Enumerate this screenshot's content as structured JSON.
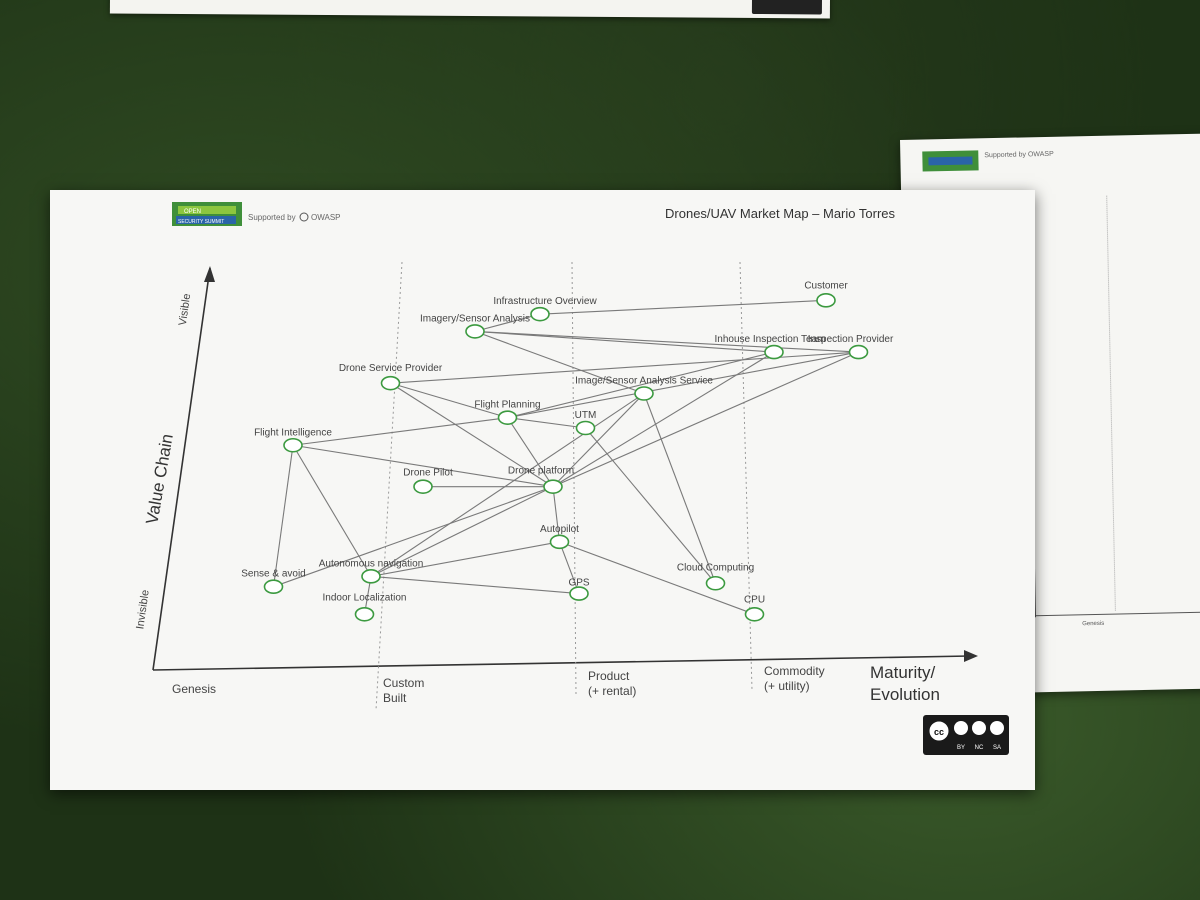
{
  "header": {
    "title": "Drones/UAV Market Map – Mario Torres",
    "supported_by": "Supported by",
    "sponsor": "OWASP",
    "badge_line1": "OPEN",
    "badge_line2": "SECURITY SUMMIT"
  },
  "axes": {
    "y_label": "Value Chain",
    "y_top": "Visible",
    "y_bottom": "Invisible",
    "x_label_line1": "Maturity/",
    "x_label_line2": "Evolution"
  },
  "stages": [
    {
      "line1": "Genesis",
      "line2": ""
    },
    {
      "line1": "Custom",
      "line2": "Built"
    },
    {
      "line1": "Product",
      "line2": "(+ rental)"
    },
    {
      "line1": "Commodity",
      "line2": "(+ utility)"
    }
  ],
  "nodes": [
    {
      "id": "customer",
      "label": "Customer",
      "evolution": 0.94,
      "visibility": 0.97
    },
    {
      "id": "infra",
      "label": "Infrastructure Overview",
      "evolution": 0.5,
      "visibility": 0.93
    },
    {
      "id": "imagery",
      "label": "Imagery/Sensor Analysis",
      "evolution": 0.4,
      "visibility": 0.88
    },
    {
      "id": "inhouse",
      "label": "Inhouse Inspection Team",
      "evolution": 0.86,
      "visibility": 0.82
    },
    {
      "id": "inspection",
      "label": "Inspection Provider",
      "evolution": 0.99,
      "visibility": 0.82
    },
    {
      "id": "dsp",
      "label": "Drone Service Provider",
      "evolution": 0.27,
      "visibility": 0.73
    },
    {
      "id": "isas",
      "label": "Image/Sensor Analysis Service",
      "evolution": 0.66,
      "visibility": 0.7
    },
    {
      "id": "fp",
      "label": "Flight Planning",
      "evolution": 0.45,
      "visibility": 0.63
    },
    {
      "id": "utm",
      "label": "UTM",
      "evolution": 0.57,
      "visibility": 0.6
    },
    {
      "id": "fi",
      "label": "Flight Intelligence",
      "evolution": 0.12,
      "visibility": 0.55
    },
    {
      "id": "pilot",
      "label": "Drone Pilot",
      "evolution": 0.32,
      "visibility": 0.43
    },
    {
      "id": "platform",
      "label": "Drone platform",
      "evolution": 0.52,
      "visibility": 0.43
    },
    {
      "id": "autopilot",
      "label": "Autopilot",
      "evolution": 0.53,
      "visibility": 0.27
    },
    {
      "id": "sa",
      "label": "Sense & avoid",
      "evolution": 0.09,
      "visibility": 0.14
    },
    {
      "id": "an",
      "label": "Autonomous navigation",
      "evolution": 0.24,
      "visibility": 0.17
    },
    {
      "id": "cloud",
      "label": "Cloud Computing",
      "evolution": 0.77,
      "visibility": 0.15
    },
    {
      "id": "gps",
      "label": "GPS",
      "evolution": 0.56,
      "visibility": 0.12
    },
    {
      "id": "cpu",
      "label": "CPU",
      "evolution": 0.83,
      "visibility": 0.06
    },
    {
      "id": "il",
      "label": "Indoor Localization",
      "evolution": 0.23,
      "visibility": 0.06
    }
  ],
  "links": [
    [
      "infra",
      "customer"
    ],
    [
      "imagery",
      "infra"
    ],
    [
      "imagery",
      "inhouse"
    ],
    [
      "imagery",
      "inspection"
    ],
    [
      "imagery",
      "isas"
    ],
    [
      "dsp",
      "inspection"
    ],
    [
      "dsp",
      "fp"
    ],
    [
      "dsp",
      "platform"
    ],
    [
      "fp",
      "inhouse"
    ],
    [
      "fp",
      "inspection"
    ],
    [
      "fp",
      "utm"
    ],
    [
      "fp",
      "platform"
    ],
    [
      "fp",
      "fi"
    ],
    [
      "isas",
      "cloud"
    ],
    [
      "isas",
      "platform"
    ],
    [
      "isas",
      "an"
    ],
    [
      "inhouse",
      "platform"
    ],
    [
      "inspection",
      "platform"
    ],
    [
      "utm",
      "cloud"
    ],
    [
      "fi",
      "platform"
    ],
    [
      "fi",
      "sa"
    ],
    [
      "fi",
      "an"
    ],
    [
      "pilot",
      "platform"
    ],
    [
      "platform",
      "autopilot"
    ],
    [
      "platform",
      "sa"
    ],
    [
      "platform",
      "an"
    ],
    [
      "autopilot",
      "an"
    ],
    [
      "autopilot",
      "gps"
    ],
    [
      "autopilot",
      "cpu"
    ],
    [
      "an",
      "gps"
    ],
    [
      "an",
      "il"
    ]
  ],
  "license": {
    "cc": "cc",
    "by": "BY",
    "nc": "NC",
    "sa": "SA"
  }
}
